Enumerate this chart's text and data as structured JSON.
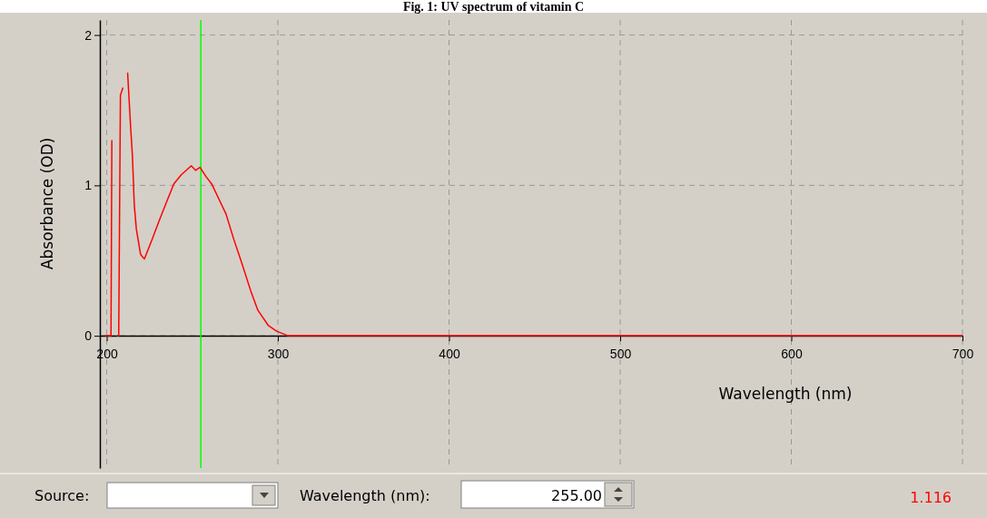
{
  "chart_data": {
    "type": "line",
    "title": "Fig. 1: UV spectrum of vitamin C",
    "xlabel": "Wavelength (nm)",
    "ylabel": "Absorbance (OD)",
    "xlim": [
      196,
      700
    ],
    "ylim": [
      -0.88,
      2.1
    ],
    "xticks": [
      200,
      300,
      400,
      500,
      600,
      700
    ],
    "yticks": [
      0,
      1,
      2
    ],
    "grid": true,
    "marker": "none",
    "line_style": "solid",
    "series": [
      {
        "color": "#ff0000",
        "x": [
          199,
          202.5,
          203,
          203.5,
          205.5,
          206,
          207,
          207.5,
          208,
          209.5,
          210,
          212,
          212.2,
          213.9,
          215,
          216.1,
          217.3,
          219.8,
          222,
          226.5,
          230.8,
          235,
          239.2,
          243.5,
          249.4,
          251.9,
          254.5,
          257.9,
          261.3,
          265.5,
          269.7,
          274,
          279,
          284.1,
          288.3,
          294.3,
          299.3,
          306,
          400,
          500,
          600,
          700
        ],
        "values": [
          0,
          0,
          1.3,
          null,
          null,
          0,
          0,
          0.8,
          1.6,
          1.65,
          null,
          null,
          1.75,
          1.4,
          1.2,
          0.87,
          0.71,
          0.54,
          0.51,
          0.64,
          0.77,
          0.89,
          1.01,
          1.07,
          1.13,
          1.1,
          1.12,
          1.06,
          1.01,
          0.91,
          0.81,
          0.65,
          0.48,
          0.3,
          0.17,
          0.07,
          0.03,
          0,
          0,
          0,
          0,
          0
        ]
      }
    ],
    "ref_lines": [
      {
        "axis": "x",
        "value": 255,
        "color": "#00ff00"
      }
    ],
    "annotations": [
      "Source:",
      "Wavelength (nm):",
      "255.00",
      "1.116"
    ]
  }
}
